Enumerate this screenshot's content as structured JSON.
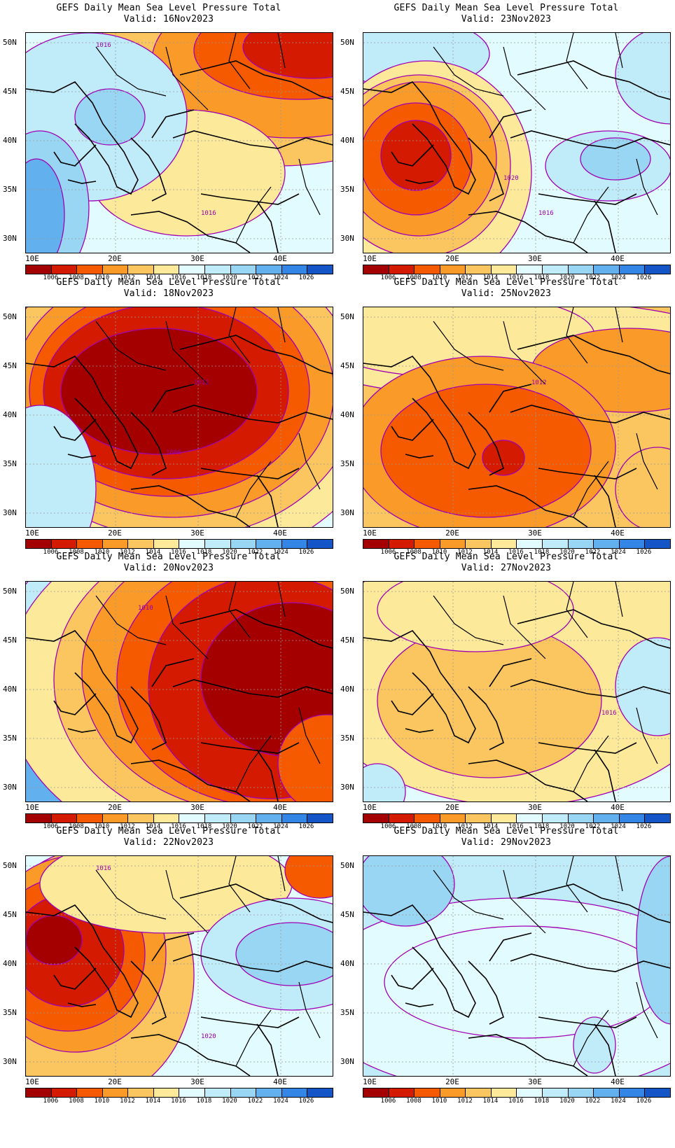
{
  "panels": [
    {
      "title": "GEFS Daily Mean Sea Level Pressure Total",
      "valid": "Valid:  16Nov2023",
      "contour_labels": [
        "1016",
        "1016"
      ]
    },
    {
      "title": "GEFS Daily Mean Sea Level Pressure Total",
      "valid": "Valid:  23Nov2023",
      "contour_labels": [
        "1016",
        "1020"
      ]
    },
    {
      "title": "GEFS Daily Mean Sea Level Pressure Total",
      "valid": "Valid:  18Nov2023",
      "contour_labels": [
        "1006",
        "1012"
      ]
    },
    {
      "title": "GEFS Daily Mean Sea Level Pressure Total",
      "valid": "Valid:  25Nov2023",
      "contour_labels": [
        "1012"
      ]
    },
    {
      "title": "GEFS Daily Mean Sea Level Pressure Total",
      "valid": "Valid:  20Nov2023",
      "contour_labels": [
        "1010"
      ]
    },
    {
      "title": "GEFS Daily Mean Sea Level Pressure Total",
      "valid": "Valid:  27Nov2023",
      "contour_labels": [
        "1016"
      ]
    },
    {
      "title": "GEFS Daily Mean Sea Level Pressure Total",
      "valid": "Valid:  22Nov2023",
      "contour_labels": [
        "1016",
        "1020"
      ]
    },
    {
      "title": "GEFS Daily Mean Sea Level Pressure Total",
      "valid": "Valid:  29Nov2023",
      "contour_labels": []
    }
  ],
  "lat_labels": [
    "50N",
    "45N",
    "40N",
    "35N",
    "30N"
  ],
  "lon_labels": [
    "10E",
    "20E",
    "30E",
    "40E"
  ],
  "colorbar": {
    "labels": [
      "1006",
      "1008",
      "1010",
      "1012",
      "1014",
      "1016",
      "1018",
      "1020",
      "1022",
      "1024",
      "1026"
    ],
    "colors": [
      "#a50000",
      "#d41a00",
      "#f55a00",
      "#fa9a28",
      "#fbc560",
      "#fde99a",
      "#e2fbff",
      "#c0ecfa",
      "#98d6f4",
      "#62b1ee",
      "#3486e6",
      "#1456c8"
    ]
  }
}
